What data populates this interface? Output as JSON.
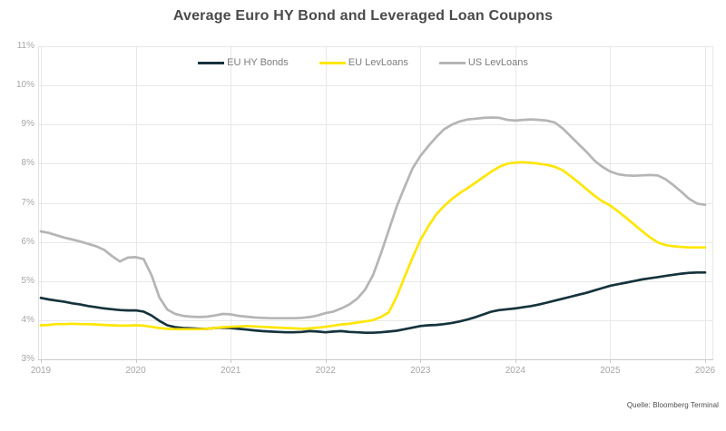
{
  "chart_data": {
    "type": "line",
    "title": "Average Euro HY Bond and Leveraged Loan Coupons",
    "source": "Quelle: Bloomberg Terminal",
    "xlabel": "",
    "ylabel": "",
    "x_ticks": [
      "2019",
      "2020",
      "2021",
      "2022",
      "2023",
      "2024",
      "2025",
      "2026"
    ],
    "y_ticks": [
      "11%",
      "10%",
      "9%",
      "8%",
      "7%",
      "6%",
      "5%",
      "4%",
      "3%"
    ],
    "ylim": [
      3,
      11
    ],
    "xlim": [
      2019,
      2026
    ],
    "x_start": 2019,
    "x_step_years": 0.08333,
    "grid": true,
    "legend_position": "top-center",
    "colors": {
      "grid": "#e8e8e8",
      "axis": "#c9c9c9",
      "plot_border": "#e2e2e2",
      "title_text": "#4a4a4a",
      "axis_text": "#a6a6a6",
      "legend_text": "#7b7b7b",
      "source_text": "#4c4c4c"
    },
    "series": [
      {
        "name": "EU HY Bonds",
        "color": "#16333d",
        "values": [
          4.57,
          4.53,
          4.5,
          4.47,
          4.43,
          4.4,
          4.36,
          4.33,
          4.3,
          4.28,
          4.26,
          4.25,
          4.25,
          4.22,
          4.12,
          3.98,
          3.87,
          3.82,
          3.8,
          3.79,
          3.78,
          3.78,
          3.8,
          3.81,
          3.8,
          3.78,
          3.76,
          3.74,
          3.72,
          3.71,
          3.7,
          3.69,
          3.69,
          3.7,
          3.72,
          3.71,
          3.69,
          3.71,
          3.72,
          3.7,
          3.69,
          3.68,
          3.68,
          3.69,
          3.71,
          3.73,
          3.77,
          3.81,
          3.85,
          3.87,
          3.88,
          3.9,
          3.93,
          3.97,
          4.02,
          4.08,
          4.15,
          4.22,
          4.26,
          4.28,
          4.3,
          4.33,
          4.36,
          4.4,
          4.45,
          4.5,
          4.55,
          4.6,
          4.65,
          4.7,
          4.76,
          4.82,
          4.88,
          4.92,
          4.96,
          5.0,
          5.04,
          5.07,
          5.1,
          5.13,
          5.16,
          5.19,
          5.21,
          5.22,
          5.22
        ]
      },
      {
        "name": "EU LevLoans",
        "color": "#ffe605",
        "values": [
          3.87,
          3.88,
          3.9,
          3.9,
          3.91,
          3.9,
          3.9,
          3.89,
          3.88,
          3.87,
          3.86,
          3.86,
          3.87,
          3.86,
          3.83,
          3.8,
          3.78,
          3.77,
          3.77,
          3.77,
          3.77,
          3.78,
          3.8,
          3.82,
          3.83,
          3.84,
          3.85,
          3.84,
          3.83,
          3.82,
          3.81,
          3.8,
          3.79,
          3.78,
          3.79,
          3.81,
          3.83,
          3.86,
          3.89,
          3.91,
          3.94,
          3.97,
          4.0,
          4.08,
          4.2,
          4.6,
          5.1,
          5.6,
          6.05,
          6.4,
          6.7,
          6.92,
          7.1,
          7.25,
          7.38,
          7.52,
          7.66,
          7.8,
          7.92,
          8.0,
          8.03,
          8.04,
          8.02,
          8.0,
          7.97,
          7.92,
          7.83,
          7.68,
          7.52,
          7.35,
          7.18,
          7.04,
          6.93,
          6.78,
          6.62,
          6.45,
          6.28,
          6.12,
          5.99,
          5.92,
          5.89,
          5.87,
          5.86,
          5.86,
          5.86
        ]
      },
      {
        "name": "US LevLoans",
        "color": "#b5b5b5",
        "values": [
          6.27,
          6.23,
          6.17,
          6.11,
          6.06,
          6.01,
          5.95,
          5.89,
          5.8,
          5.64,
          5.5,
          5.6,
          5.61,
          5.56,
          5.15,
          4.58,
          4.27,
          4.16,
          4.11,
          4.09,
          4.08,
          4.09,
          4.12,
          4.16,
          4.15,
          4.11,
          4.09,
          4.07,
          4.06,
          4.05,
          4.05,
          4.05,
          4.05,
          4.06,
          4.08,
          4.12,
          4.18,
          4.22,
          4.3,
          4.4,
          4.55,
          4.78,
          5.15,
          5.7,
          6.3,
          6.9,
          7.4,
          7.88,
          8.2,
          8.45,
          8.68,
          8.88,
          9.0,
          9.08,
          9.13,
          9.15,
          9.17,
          9.18,
          9.17,
          9.12,
          9.1,
          9.12,
          9.13,
          9.12,
          9.1,
          9.05,
          8.9,
          8.7,
          8.5,
          8.3,
          8.08,
          7.92,
          7.8,
          7.73,
          7.7,
          7.69,
          7.7,
          7.71,
          7.7,
          7.6,
          7.45,
          7.28,
          7.1,
          6.98,
          6.95
        ]
      }
    ]
  }
}
